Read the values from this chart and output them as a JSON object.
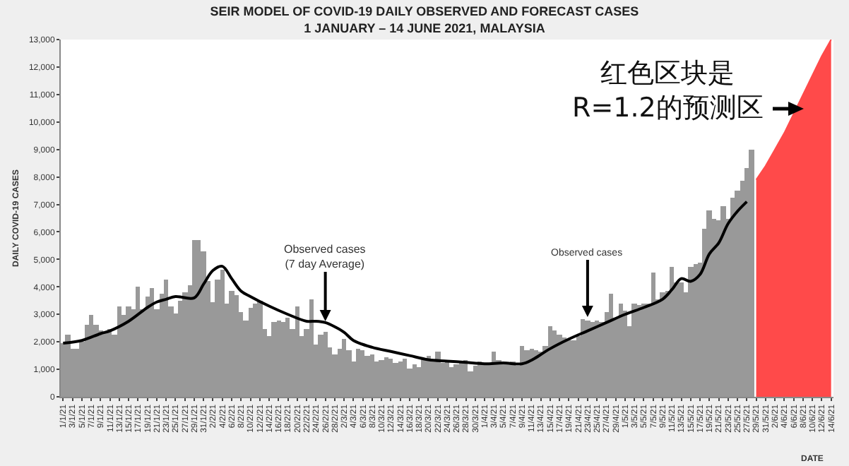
{
  "chart_data": {
    "type": "bar",
    "title": "SEIR MODEL OF COVID-19 DAILY OBSERVED AND FORECAST CASES\n1 JANUARY – 14 JUNE 2021, MALAYSIA",
    "xlabel": "DATE",
    "ylabel": "DAILY COVID-19 CASES",
    "categories": [
      "1/1/21",
      null,
      "3/1/21",
      null,
      "5/1/21",
      null,
      "7/1/21",
      null,
      "9/1/21",
      null,
      "11/1/21",
      null,
      "13/1/21",
      null,
      "15/1/21",
      null,
      "17/1/21",
      null,
      "19/1/21",
      null,
      "21/1/21",
      null,
      "23/1/21",
      null,
      "25/1/21",
      null,
      "27/1/21",
      null,
      "29/1/21",
      null,
      "31/1/21",
      null,
      "2/2/21",
      null,
      "4/2/21",
      null,
      "6/2/21",
      null,
      "8/2/21",
      null,
      "10/2/21",
      null,
      "12/2/21",
      null,
      "14/2/21",
      null,
      "16/2/21",
      null,
      "18/2/21",
      null,
      "20/2/21",
      null,
      "22/2/21",
      null,
      "24/2/21",
      null,
      "26/2/21",
      null,
      "28/2/21",
      null,
      "2/3/21",
      null,
      "4/3/21",
      null,
      "6/3/21",
      null,
      "8/3/21",
      null,
      "10/3/21",
      null,
      "12/3/21",
      null,
      "14/3/21",
      null,
      "16/3/21",
      null,
      "18/3/21",
      null,
      "20/3/21",
      null,
      "22/3/21",
      null,
      "24/3/21",
      null,
      "26/3/21",
      null,
      "28/3/21",
      null,
      "30/3/21",
      null,
      "1/4/21",
      null,
      "3/4/21",
      null,
      "5/4/21",
      null,
      "7/4/21",
      null,
      "9/4/21",
      null,
      "11/4/21",
      null,
      "13/4/21",
      null,
      "15/4/21",
      null,
      "17/4/21",
      null,
      "19/4/21",
      null,
      "21/4/21",
      null,
      "23/4/21",
      null,
      "25/4/21",
      null,
      "27/4/21",
      null,
      "29/4/21",
      null,
      "1/5/21",
      null,
      "3/5/21",
      null,
      "5/5/21",
      null,
      "7/5/21",
      null,
      "9/5/21",
      null,
      "11/5/21",
      null,
      "13/5/21",
      null,
      "15/5/21",
      null,
      "17/5/21",
      null,
      "19/5/21",
      null,
      "21/5/21",
      null,
      "23/5/21",
      null,
      "25/5/21",
      null,
      "27/5/21",
      null,
      "29/5/21",
      null,
      "31/5/21",
      null,
      "2/6/21",
      null,
      "4/6/21",
      null,
      "6/6/21",
      null,
      "8/6/21",
      null,
      "10/6/21",
      null,
      "12/6/21",
      null,
      "14/6/21"
    ],
    "series": [
      {
        "type": "bar",
        "color": "#999999",
        "values": [
          1970,
          2280,
          1730,
          1750,
          2000,
          2600,
          3000,
          2600,
          2400,
          2300,
          2450,
          2250,
          3300,
          3000,
          3300,
          3200,
          4000,
          3200,
          3650,
          3950,
          3170,
          3730,
          4250,
          3300,
          3050,
          3500,
          3800,
          4050,
          5700,
          5700,
          5300,
          4200,
          3450,
          4250,
          4600,
          3400,
          3830,
          3700,
          3100,
          2750,
          3250,
          3400,
          3500,
          2450,
          2200,
          2700,
          2800,
          2700,
          2900,
          2450,
          3300,
          2200,
          2450,
          3550,
          1900,
          2250,
          2350,
          1800,
          1550,
          1750,
          2100,
          1700,
          1300,
          1750,
          1700,
          1500,
          1550,
          1300,
          1350,
          1450,
          1400,
          1250,
          1300,
          1400,
          1050,
          1200,
          1100,
          1400,
          1500,
          1300,
          1650,
          1250,
          1350,
          1100,
          1200,
          1250,
          1350,
          900,
          1150,
          1300,
          1250,
          1200,
          1650,
          1350,
          1200,
          1250,
          1300,
          1150,
          1850,
          1700,
          1750,
          1700,
          1650,
          1850,
          2550,
          2400,
          2250,
          2150,
          2100,
          2050,
          2200,
          2850,
          2800,
          2700,
          2750,
          2700,
          3100,
          3750,
          2900,
          3400,
          3150,
          2550,
          3400,
          3350,
          3400,
          3400,
          4500,
          3550,
          3800,
          3850,
          4750,
          4150,
          4150,
          3800,
          4750,
          4850,
          4900,
          6100,
          6800,
          6500,
          6400,
          6950,
          6450,
          7250,
          7500,
          7850,
          8300,
          9000,
          null,
          null,
          null,
          null,
          null,
          null,
          null,
          null,
          null,
          null,
          null,
          null,
          null,
          null,
          null,
          null,
          null
        ]
      },
      {
        "type": "line",
        "color": "#000000",
        "x": [
          "1/1/21",
          "5/1/21",
          "9/1/21",
          "11/1/21",
          "15/1/21",
          "19/1/21",
          "21/1/21",
          "23/1/21",
          "25/1/21",
          "29/1/21",
          "31/1/21",
          "2/2/21",
          "4/2/21",
          "6/2/21",
          "8/2/21",
          "10/2/21",
          "14/2/21",
          "18/2/21",
          "22/2/21",
          "24/2/21",
          "26/2/21",
          "28/2/21",
          "2/3/21",
          "4/3/21",
          "8/3/21",
          "12/3/21",
          "16/3/21",
          "20/3/21",
          "24/3/21",
          "28/3/21",
          "1/4/21",
          "5/4/21",
          "9/4/21",
          "11/4/21",
          "15/4/21",
          "19/4/21",
          "23/4/21",
          "27/4/21",
          "1/5/21",
          "5/5/21",
          "9/5/21",
          "11/5/21",
          "13/5/21",
          "15/5/21",
          "17/5/21",
          "19/5/21",
          "21/5/21",
          "23/5/21",
          "25/5/21",
          "27/5/21"
        ],
        "values": [
          1950,
          2050,
          2300,
          2400,
          2750,
          3250,
          3450,
          3550,
          3650,
          3600,
          4100,
          4600,
          4750,
          4300,
          3850,
          3650,
          3300,
          3000,
          2750,
          2750,
          2700,
          2550,
          2350,
          2050,
          1800,
          1650,
          1500,
          1350,
          1300,
          1250,
          1200,
          1230,
          1200,
          1330,
          1750,
          2100,
          2400,
          2700,
          3000,
          3250,
          3550,
          3900,
          4300,
          4200,
          4450,
          5200,
          5600,
          6300,
          6750,
          7100
        ]
      },
      {
        "type": "area",
        "color": "#ff4a4a",
        "x": [
          "29/5/21",
          "31/5/21",
          "2/6/21",
          "4/6/21",
          "6/6/21",
          "8/6/21",
          "10/6/21",
          "12/6/21",
          "14/6/21"
        ],
        "values": [
          7900,
          8400,
          9000,
          9600,
          10300,
          11000,
          11700,
          12400,
          13000
        ]
      }
    ],
    "ylim": [
      0,
      13000
    ],
    "yticks": [
      0,
      {
        "value": 1000,
        "label": "1,000"
      },
      {
        "value": 2000,
        "label": "2,000"
      },
      {
        "value": 3000,
        "label": "3,000"
      },
      {
        "value": 4000,
        "label": "4,000"
      },
      {
        "value": 5000,
        "label": "5,000"
      },
      {
        "value": 6000,
        "label": "6,000"
      },
      {
        "value": 7000,
        "label": "7,000"
      },
      {
        "value": 8000,
        "label": "8,000"
      },
      {
        "value": 9000,
        "label": "9,000"
      },
      {
        "value": 10000,
        "label": "10,000"
      },
      {
        "value": 11000,
        "label": "11,000"
      },
      {
        "value": 12000,
        "label": "12,000"
      },
      {
        "value": 13000,
        "label": "13,000"
      }
    ],
    "annotations": [
      {
        "text": "Observed cases\n(7 day Average)",
        "x": "26/2/21",
        "y": 2750
      },
      {
        "text": "Observed cases",
        "x": "23/4/21",
        "y": 2900
      },
      "红色区块是\nR=1.2的预测区"
    ]
  }
}
